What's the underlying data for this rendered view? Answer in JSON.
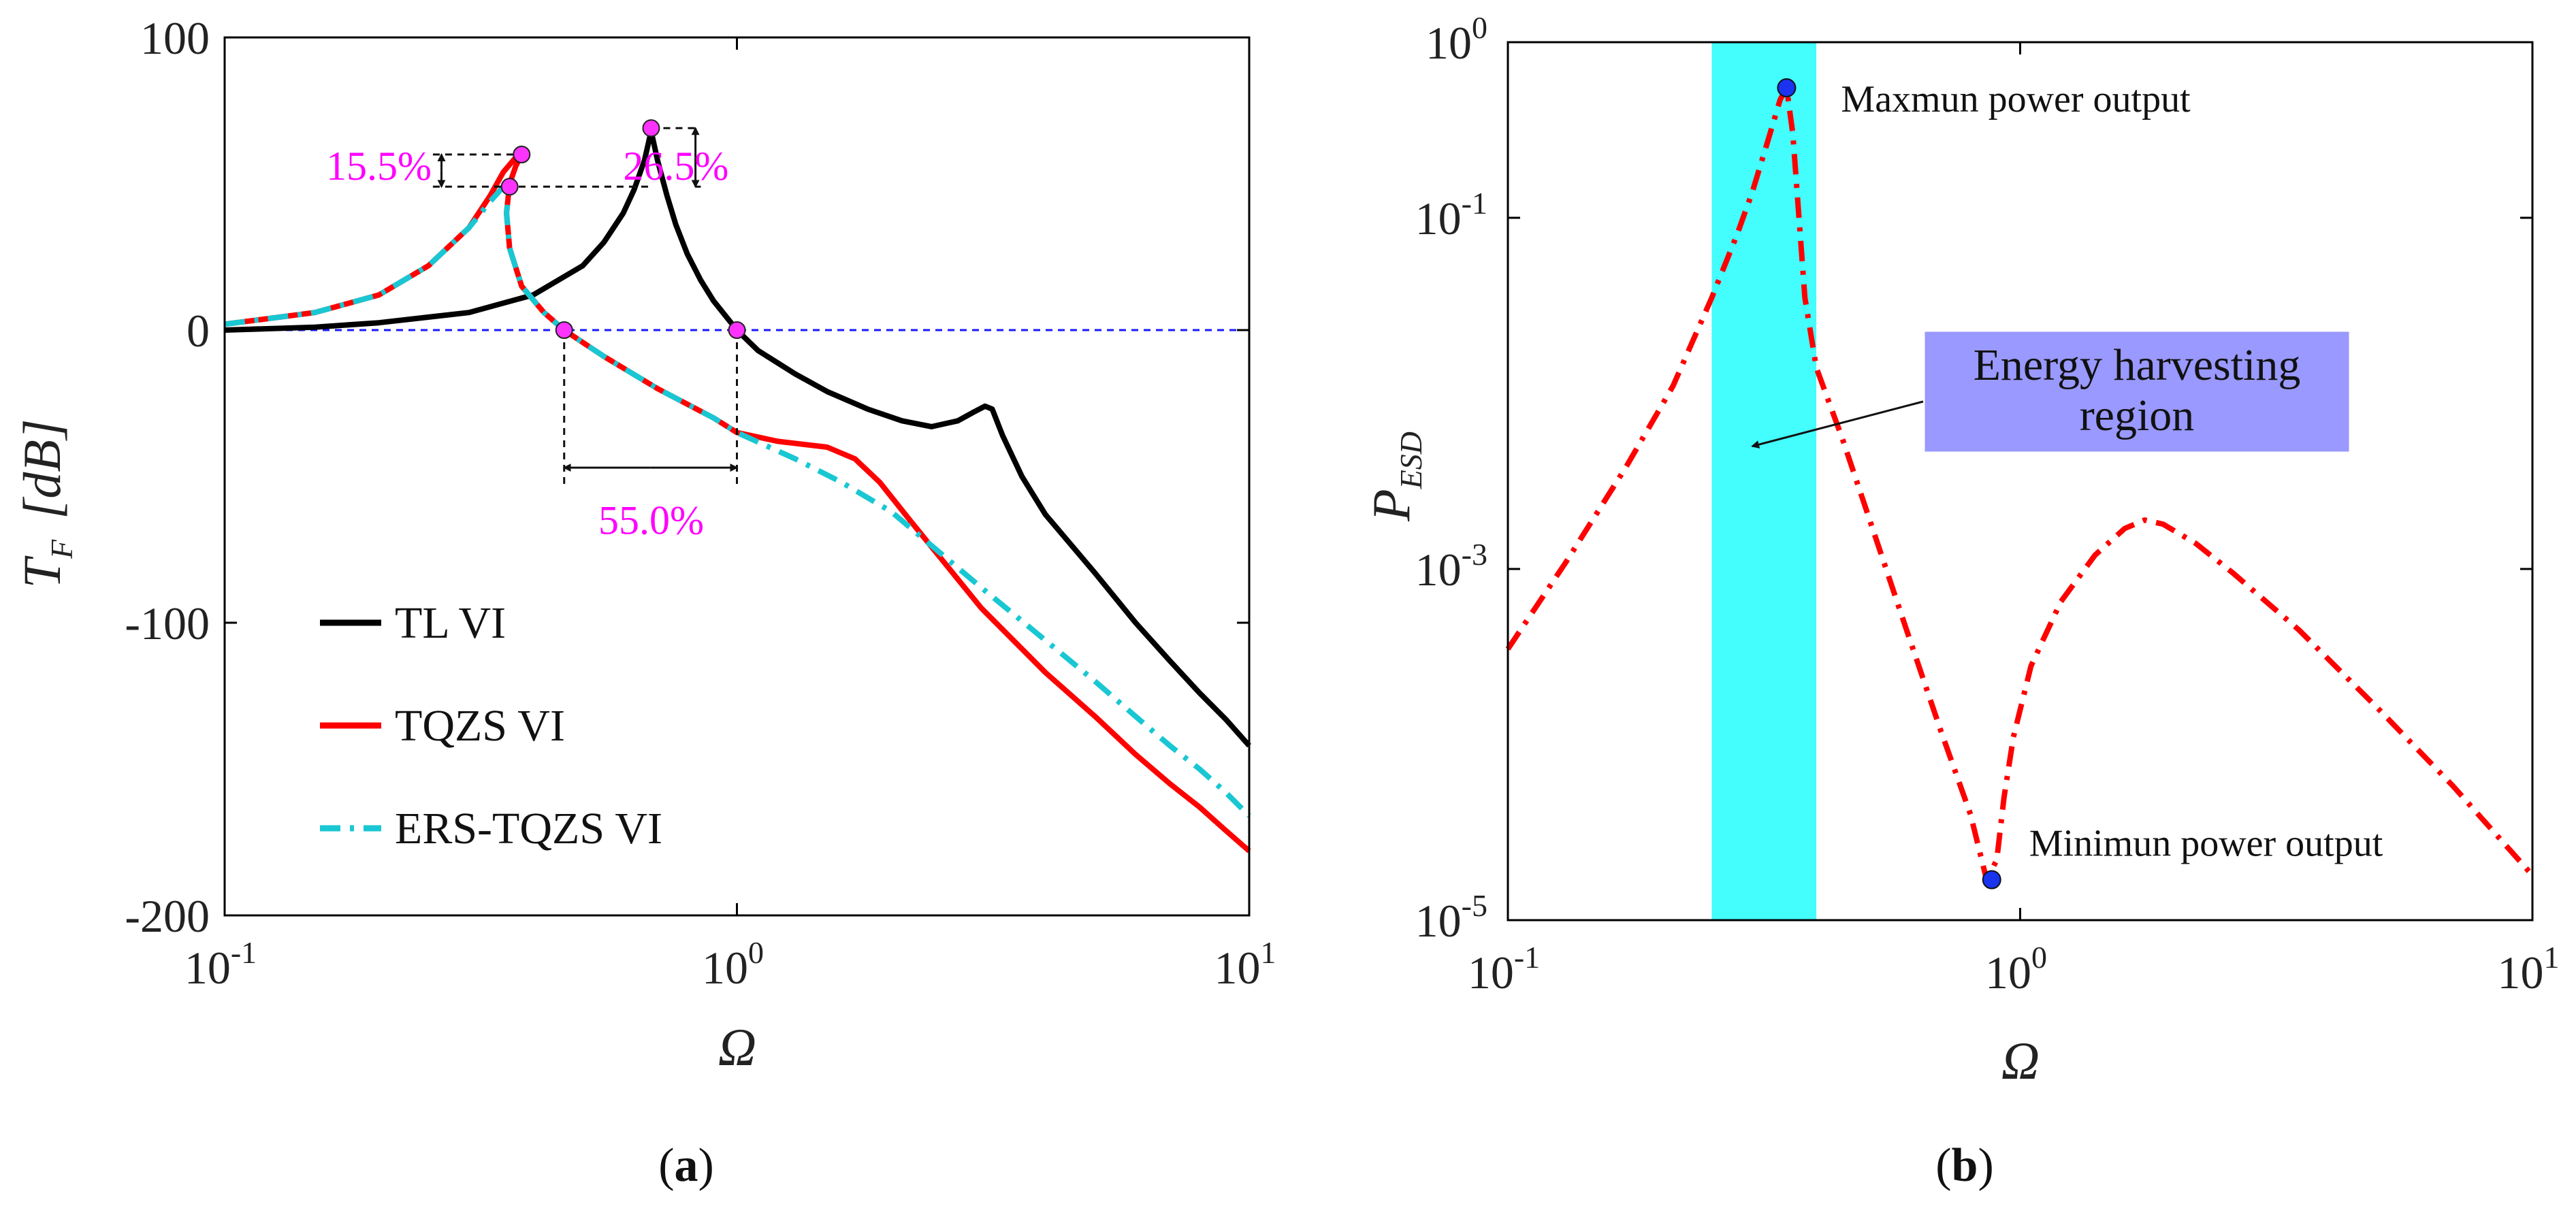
{
  "colors": {
    "tl": "#000000",
    "tqzs": "#ff0000",
    "ers": "#19c7d3",
    "zero_line": "#1a1aff",
    "marker_mag": "#ff33ff",
    "marker_blue": "#1a33ee",
    "cyan_band": "#44fdfd",
    "box_fill": "#9999ff",
    "annot_mag": "#ff00ff"
  },
  "panels": {
    "a": {
      "label_open": "(",
      "label_letter": "a",
      "label_close": ")"
    },
    "b": {
      "label_open": "(",
      "label_letter": "b",
      "label_close": ")"
    }
  },
  "chart_data": [
    {
      "type": "line",
      "panel": "a",
      "xscale": "log",
      "xlim": [
        0.1,
        10
      ],
      "ylim": [
        -200,
        100
      ],
      "xlabel": "Ω",
      "ylabel_main": "T",
      "ylabel_sub": "F",
      "ylabel_unit": "[dB]",
      "xticks": [
        {
          "value": 0.1,
          "base": "10",
          "exp": "-1"
        },
        {
          "value": 1,
          "base": "10",
          "exp": "0"
        },
        {
          "value": 10,
          "base": "10",
          "exp": "1"
        }
      ],
      "yticks": [
        {
          "value": 100,
          "label": "100"
        },
        {
          "value": 0,
          "label": "0"
        },
        {
          "value": -100,
          "label": "-100"
        },
        {
          "value": -200,
          "label": "-200"
        }
      ],
      "legend": {
        "placement": "bottom-left",
        "entries": [
          "TL VI",
          "TQZS VI",
          "ERS-TQZS VI"
        ]
      },
      "series": [
        {
          "name": "TL VI",
          "style": "solid",
          "x": [
            0.1,
            0.15,
            0.2,
            0.3,
            0.4,
            0.5,
            0.55,
            0.6,
            0.63,
            0.66,
            0.68,
            0.7,
            0.73,
            0.76,
            0.8,
            0.85,
            0.9,
            1.0,
            1.1,
            1.3,
            1.5,
            1.8,
            2.1,
            2.4,
            2.7,
            2.9,
            3.05,
            3.15,
            3.3,
            3.6,
            4,
            5,
            6,
            7,
            8,
            9,
            10
          ],
          "y": [
            0,
            1,
            2.5,
            6,
            12,
            22,
            30,
            40,
            48,
            58,
            68,
            58,
            46,
            36,
            26,
            17,
            10,
            0,
            -7,
            -15,
            -21,
            -27,
            -31,
            -33,
            -31,
            -28,
            -26,
            -27,
            -36,
            -50,
            -63,
            -83,
            -100,
            -113,
            -124,
            -133,
            -142
          ]
        },
        {
          "name": "TQZS VI",
          "style": "solid",
          "x": [
            0.1,
            0.15,
            0.2,
            0.25,
            0.3,
            0.33,
            0.35,
            0.37,
            0.38,
            0.37,
            0.36,
            0.355,
            0.36,
            0.38,
            0.42,
            0.46,
            0.55,
            0.7,
            0.9,
            1.0,
            1.2,
            1.5,
            1.7,
            1.9,
            2.2,
            3,
            4,
            5,
            6,
            7,
            8,
            9,
            10
          ],
          "y": [
            2,
            6,
            12,
            22,
            35,
            46,
            54,
            59,
            60,
            56,
            50,
            40,
            28,
            15,
            6,
            0,
            -9,
            -20,
            -30,
            -35,
            -38,
            -40,
            -44,
            -52,
            -66,
            -95,
            -117,
            -132,
            -145,
            -155,
            -163,
            -171,
            -178
          ]
        },
        {
          "name": "ERS-TQZS VI",
          "style": "dashdot",
          "x": [
            0.1,
            0.15,
            0.2,
            0.25,
            0.3,
            0.33,
            0.35,
            0.36,
            0.355,
            0.36,
            0.38,
            0.42,
            0.46,
            0.55,
            0.7,
            0.9,
            1.0,
            1.3,
            1.6,
            2,
            3,
            4,
            5,
            6,
            7,
            8,
            9,
            10
          ],
          "y": [
            2,
            6,
            12,
            22,
            35,
            44,
            49,
            49,
            40,
            28,
            15,
            6,
            0,
            -9,
            -20,
            -30,
            -35,
            -44,
            -52,
            -62,
            -88,
            -106,
            -120,
            -132,
            -142,
            -150,
            -158,
            -166
          ]
        }
      ],
      "reference_line": {
        "y": 0,
        "style": "dashed"
      },
      "markers": [
        {
          "x": 0.38,
          "y": 60
        },
        {
          "x": 0.36,
          "y": 49
        },
        {
          "x": 0.68,
          "y": 69
        },
        {
          "x": 0.46,
          "y": 0
        },
        {
          "x": 1.0,
          "y": 0
        }
      ],
      "annotations": [
        {
          "text": "15.5%",
          "x": 0.2,
          "y": 56
        },
        {
          "text": "26.5%",
          "x": 0.76,
          "y": 56
        },
        {
          "text": "55.0%",
          "x": 0.68,
          "y": -65
        }
      ]
    },
    {
      "type": "line",
      "panel": "b",
      "xscale": "log",
      "yscale": "log",
      "xlim": [
        0.1,
        10
      ],
      "ylim": [
        1e-05,
        1
      ],
      "xlabel": "Ω",
      "ylabel_main": "P",
      "ylabel_sub": "ESD",
      "xticks": [
        {
          "value": 0.1,
          "base": "10",
          "exp": "-1"
        },
        {
          "value": 1,
          "base": "10",
          "exp": "0"
        },
        {
          "value": 10,
          "base": "10",
          "exp": "1"
        }
      ],
      "yticks": [
        {
          "value": 1,
          "base": "10",
          "exp": "0"
        },
        {
          "value": 0.1,
          "base": "10",
          "exp": "-1"
        },
        {
          "value": 0.001,
          "base": "10",
          "exp": "-3"
        },
        {
          "value": 1e-05,
          "base": "10",
          "exp": "-5"
        }
      ],
      "series": [
        {
          "name": "P_ESD",
          "style": "dashdot",
          "x": [
            0.1,
            0.13,
            0.17,
            0.21,
            0.25,
            0.28,
            0.3,
            0.32,
            0.34,
            0.35,
            0.36,
            0.37,
            0.38,
            0.4,
            0.45,
            0.5,
            0.6,
            0.7,
            0.8,
            0.86,
            0.9,
            0.93,
            0.97,
            1.05,
            1.2,
            1.4,
            1.6,
            1.75,
            1.9,
            2.2,
            2.6,
            3.5,
            5,
            7,
            10
          ],
          "y": [
            0.00035,
            0.0011,
            0.0038,
            0.011,
            0.035,
            0.08,
            0.14,
            0.26,
            0.47,
            0.55,
            0.3,
            0.1,
            0.035,
            0.014,
            0.0055,
            0.0022,
            0.00045,
            0.00012,
            4e-05,
            1.7e-05,
            2.2e-05,
            5e-05,
            0.00011,
            0.00028,
            0.00065,
            0.0012,
            0.0017,
            0.0019,
            0.0018,
            0.0014,
            0.00095,
            0.00045,
            0.00016,
            5.8e-05,
            1.8e-05
          ]
        }
      ],
      "band": {
        "x_from": 0.25,
        "x_to": 0.4,
        "label": "Energy harvesting region"
      },
      "markers": [
        {
          "x": 0.35,
          "y": 0.55,
          "label": "Maxmun power output"
        },
        {
          "x": 0.88,
          "y": 1.7e-05,
          "label": "Minimun power output"
        }
      ],
      "annotation_box": {
        "line1": "Energy harvesting",
        "line2": "region",
        "arrow_target_x": 0.3,
        "arrow_target_y": 0.005
      }
    }
  ]
}
